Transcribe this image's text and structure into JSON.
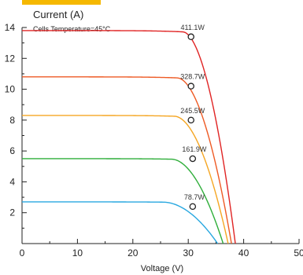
{
  "chart_data": {
    "type": "line",
    "ylabel": "Current (A)",
    "subtitle": "Cells Temperature=45°C",
    "xlabel": "Voltage (V)",
    "xlim": [
      0,
      50
    ],
    "ylim": [
      0,
      14
    ],
    "xticks": [
      "0",
      "10",
      "20",
      "30",
      "40",
      "50"
    ],
    "yticks": [
      "2",
      "4",
      "6",
      "8",
      "10",
      "12",
      "14"
    ],
    "grid": false,
    "series": [
      {
        "name": "",
        "label": "411.1W",
        "color": "#e02424",
        "isc": 13.8,
        "knee_v": 29.0,
        "voc": 38.5,
        "point": {
          "x": 30.5,
          "y": 13.4
        }
      },
      {
        "name": "",
        "label": "328.7W",
        "color": "#ee5a24",
        "isc": 10.8,
        "knee_v": 28.0,
        "voc": 37.8,
        "point": {
          "x": 30.5,
          "y": 10.2
        }
      },
      {
        "name": "",
        "label": "245.5W",
        "color": "#f5a623",
        "isc": 8.3,
        "knee_v": 27.5,
        "voc": 37.2,
        "point": {
          "x": 30.5,
          "y": 8.0
        }
      },
      {
        "name": "",
        "label": "161.9W",
        "color": "#2fae3a",
        "isc": 5.5,
        "knee_v": 27.0,
        "voc": 36.3,
        "point": {
          "x": 30.8,
          "y": 5.5
        }
      },
      {
        "name": "",
        "label": "78.7W",
        "color": "#29a8e0",
        "isc": 2.7,
        "knee_v": 25.5,
        "voc": 35.3,
        "point": {
          "x": 30.8,
          "y": 2.4
        }
      }
    ]
  }
}
